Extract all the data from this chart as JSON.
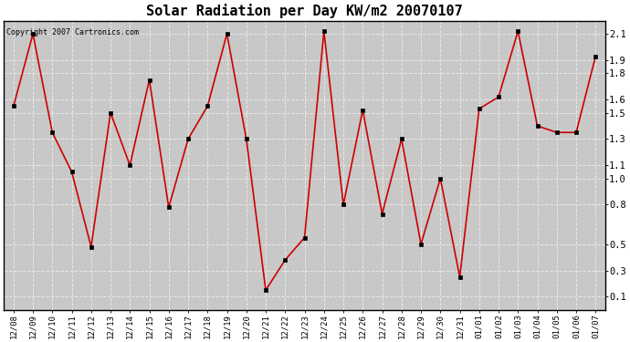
{
  "title": "Solar Radiation per Day KW/m2 20070107",
  "copyright": "Copyright 2007 Cartronics.com",
  "labels": [
    "12/08",
    "12/09",
    "12/10",
    "12/11",
    "12/12",
    "12/13",
    "12/14",
    "12/15",
    "12/16",
    "12/17",
    "12/18",
    "12/19",
    "12/20",
    "12/21",
    "12/22",
    "12/23",
    "12/24",
    "12/25",
    "12/26",
    "12/27",
    "12/28",
    "12/29",
    "12/30",
    "12/31",
    "01/01",
    "01/02",
    "01/03",
    "01/04",
    "01/05",
    "01/06",
    "01/07"
  ],
  "values": [
    1.55,
    2.1,
    1.35,
    1.05,
    0.48,
    1.5,
    1.1,
    1.75,
    0.78,
    1.3,
    1.55,
    2.1,
    1.3,
    0.15,
    0.38,
    0.55,
    2.12,
    0.8,
    1.52,
    0.73,
    1.3,
    0.5,
    1.0,
    0.25,
    1.53,
    1.62,
    2.12,
    1.4,
    1.35,
    1.35,
    1.93
  ],
  "line_color": "#cc0000",
  "marker_size": 3,
  "marker_color": "#000000",
  "ylim": [
    0.0,
    2.2
  ],
  "yticks": [
    0.1,
    0.3,
    0.5,
    0.8,
    1.0,
    1.1,
    1.3,
    1.5,
    1.6,
    1.8,
    1.9,
    2.1
  ],
  "background_color": "#c8c8c8",
  "grid_color": "#e8e8e8",
  "title_fontsize": 11,
  "axis_fontsize": 6.5,
  "copyright_fontsize": 6
}
